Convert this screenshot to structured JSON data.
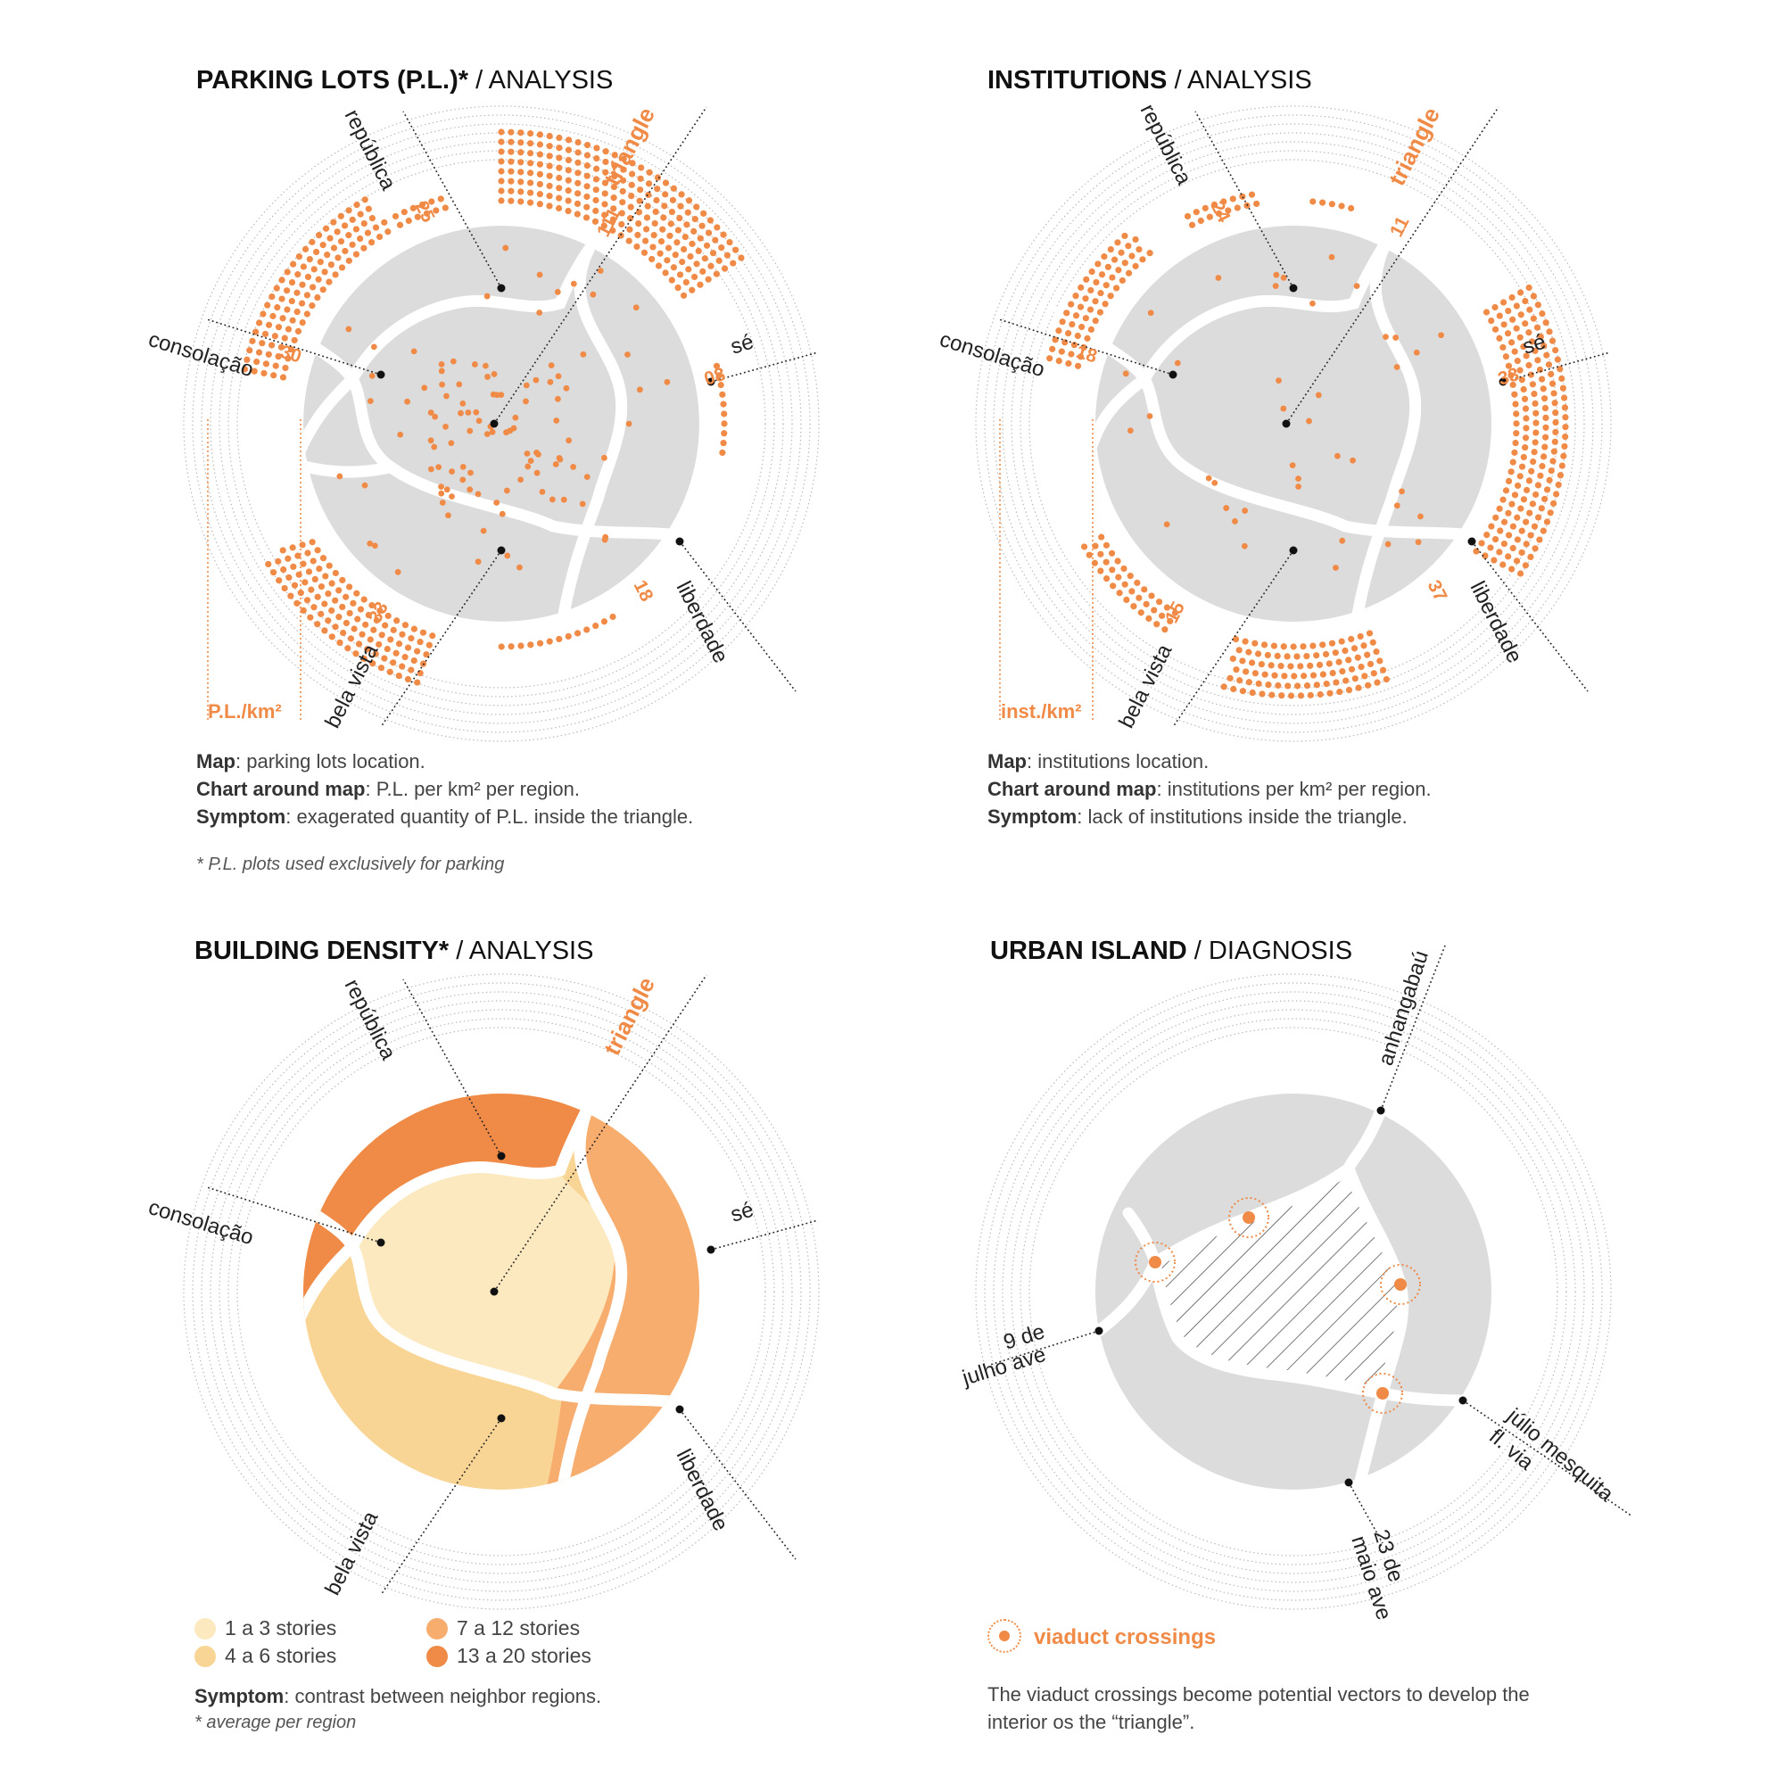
{
  "panels": {
    "parking": {
      "title_bold": "PARKING LOTS (P.L.)*",
      "title_sep": " / ",
      "title_rest": "ANALYSIS",
      "axis_label": "P.L./km²",
      "values": {
        "republica": "25",
        "triangle": "111",
        "se": "08",
        "liberdade": "18",
        "bela_vista": "33",
        "consolacao": "30"
      },
      "caption": [
        {
          "bold": "Map",
          "text": ": parking lots location."
        },
        {
          "bold": "Chart around map",
          "text": ": P.L. per km² per region."
        },
        {
          "bold": "Symptom",
          "text": ": exagerated quantity of P.L. inside the triangle."
        }
      ],
      "footnote": "* P.L. plots used exclusively for parking"
    },
    "institutions": {
      "title_bold": "INSTITUTIONS",
      "title_sep": " / ",
      "title_rest": "ANALYSIS",
      "axis_label": "inst./km²",
      "values": {
        "republica": "24",
        "triangle": "11",
        "se": "33",
        "liberdade": "37",
        "bela_vista": "15",
        "consolacao": "18"
      },
      "caption": [
        {
          "bold": "Map",
          "text": ": institutions location."
        },
        {
          "bold": "Chart around map",
          "text": ": institutions per km² per region."
        },
        {
          "bold": "Symptom",
          "text": ": lack of institutions inside the triangle."
        }
      ]
    },
    "density": {
      "title_bold": "BUILDING DENSITY*",
      "title_sep": " / ",
      "title_rest": "ANALYSIS",
      "legend": [
        {
          "label": "1 a 3 stories",
          "color": "#fde9bf"
        },
        {
          "label": "4 a 6 stories",
          "color": "#f9d595"
        },
        {
          "label": "7 a 12 stories",
          "color": "#f7ad6e"
        },
        {
          "label": "13 a 20 stories",
          "color": "#f08a47"
        }
      ],
      "symptom_bold": "Symptom",
      "symptom_text": ": contrast between neighbor regions.",
      "footnote": "* average per region"
    },
    "island": {
      "title_bold": "URBAN ISLAND",
      "title_sep": " / ",
      "title_rest": "DIAGNOSIS",
      "legend_label": "viaduct crossings",
      "roads": {
        "anhangabau": "anhangabaú",
        "nove_line1": "9 de",
        "nove_line2": "julho ave",
        "julio_line1": "júlio mesquita",
        "julio_line2": "fl. via",
        "maio_line1": "23 de",
        "maio_line2": "maio ave"
      },
      "caption_line1": "The viaduct crossings become potential vectors to develop the",
      "caption_line2": "interior os the “triangle”."
    }
  },
  "regions": {
    "republica": "república",
    "triangle": "triangle",
    "consolacao": "consolação",
    "se": "sé",
    "bela_vista": "bela vista",
    "liberdade": "liberdade"
  },
  "colors": {
    "accent": "#f08a47",
    "map_gray": "#dcdcdc",
    "leader": "#222222",
    "ring": "#bbbbbb"
  }
}
